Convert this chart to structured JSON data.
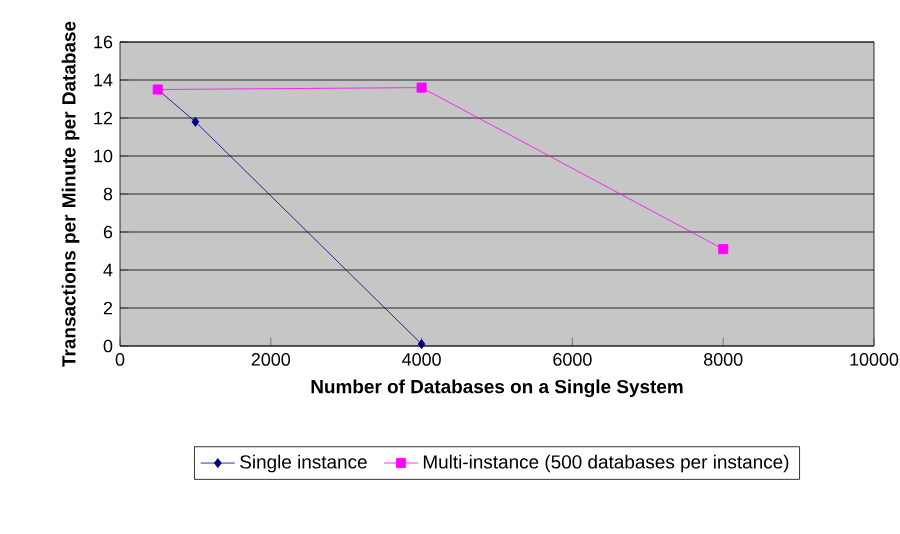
{
  "chart_data": {
    "type": "line",
    "xlabel": "Number of Databases on a Single System",
    "ylabel": "Transactions per Minute per Database",
    "xlim": [
      0,
      10000
    ],
    "xticks": [
      0,
      2000,
      4000,
      6000,
      8000,
      10000
    ],
    "ylim": [
      0,
      16
    ],
    "yticks": [
      0,
      2,
      4,
      6,
      8,
      10,
      12,
      14,
      16
    ],
    "grid": "y",
    "legend": "bottom",
    "line_style": "solid",
    "series": [
      {
        "name": "Single instance",
        "color": "#000080",
        "marker": "diamond",
        "x": [
          500,
          1000,
          4000
        ],
        "values": [
          13.5,
          11.8,
          0.1
        ]
      },
      {
        "name": "Multi-instance (500 databases per instance)",
        "color": "#ff00ff",
        "marker": "square",
        "x": [
          500,
          4000,
          8000
        ],
        "values": [
          13.5,
          13.6,
          5.1
        ]
      }
    ]
  }
}
